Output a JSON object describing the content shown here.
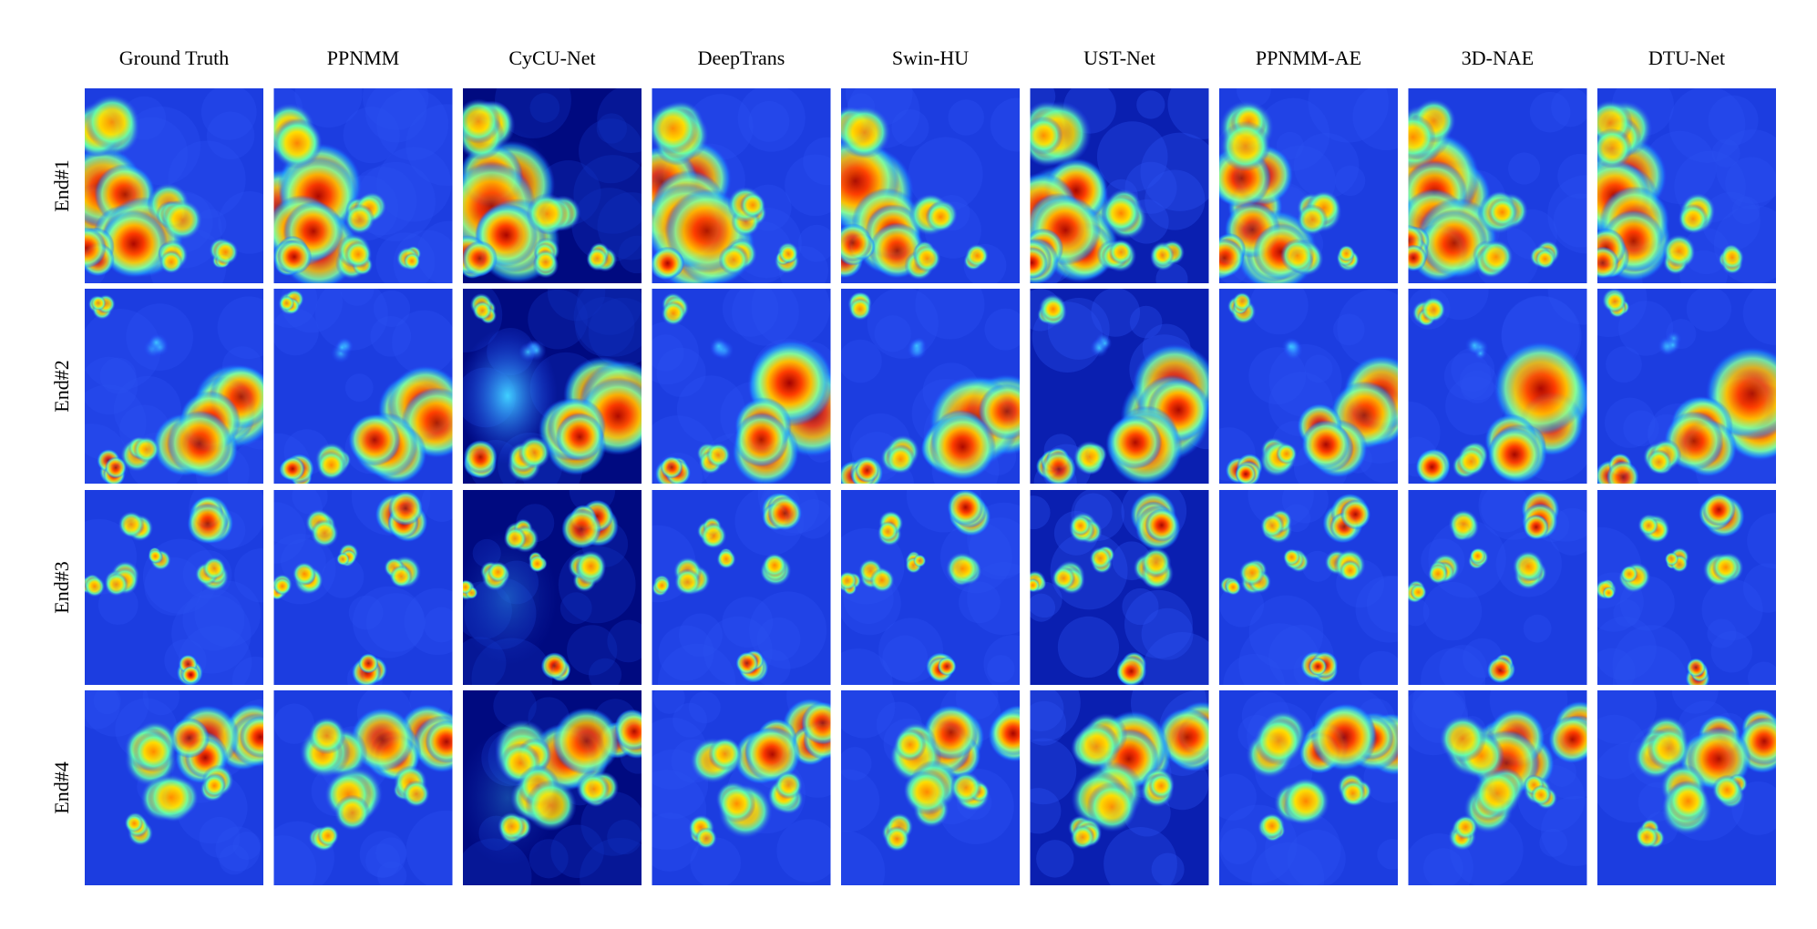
{
  "column_headers": [
    "Ground Truth",
    "PPNMM",
    "CyCU-Net",
    "DeepTrans",
    "Swin-HU",
    "UST-Net",
    "PPNMM-AE",
    "3D-NAE",
    "DTU-Net"
  ],
  "row_labels": [
    "End#1",
    "End#2",
    "End#3",
    "End#4"
  ]
}
